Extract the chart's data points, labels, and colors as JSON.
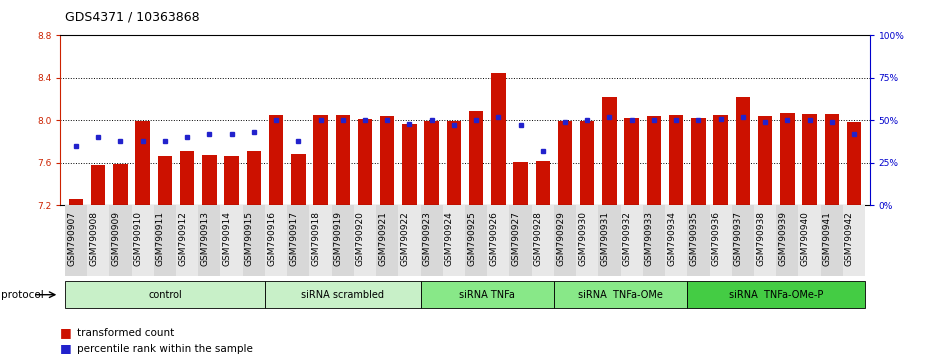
{
  "title": "GDS4371 / 10363868",
  "samples": [
    "GSM790907",
    "GSM790908",
    "GSM790909",
    "GSM790910",
    "GSM790911",
    "GSM790912",
    "GSM790913",
    "GSM790914",
    "GSM790915",
    "GSM790916",
    "GSM790917",
    "GSM790918",
    "GSM790919",
    "GSM790920",
    "GSM790921",
    "GSM790922",
    "GSM790923",
    "GSM790924",
    "GSM790925",
    "GSM790926",
    "GSM790927",
    "GSM790928",
    "GSM790929",
    "GSM790930",
    "GSM790931",
    "GSM790932",
    "GSM790933",
    "GSM790934",
    "GSM790935",
    "GSM790936",
    "GSM790937",
    "GSM790938",
    "GSM790939",
    "GSM790940",
    "GSM790941",
    "GSM790942"
  ],
  "bar_values": [
    7.26,
    7.58,
    7.59,
    7.99,
    7.66,
    7.71,
    7.67,
    7.66,
    7.71,
    8.05,
    7.68,
    8.05,
    8.05,
    8.01,
    8.04,
    7.97,
    7.99,
    7.99,
    8.09,
    8.45,
    7.61,
    7.62,
    7.99,
    7.99,
    8.22,
    8.02,
    8.04,
    8.05,
    8.02,
    8.05,
    8.22,
    8.04,
    8.07,
    8.06,
    8.06,
    7.98
  ],
  "percentile_values": [
    35,
    40,
    38,
    38,
    38,
    40,
    42,
    42,
    43,
    50,
    38,
    50,
    50,
    50,
    50,
    48,
    50,
    47,
    50,
    52,
    47,
    32,
    49,
    50,
    52,
    50,
    50,
    50,
    50,
    51,
    52,
    49,
    50,
    50,
    49,
    42
  ],
  "groups": [
    {
      "label": "control",
      "start": 0,
      "end": 9,
      "color": "#c8f0c8"
    },
    {
      "label": "siRNA scrambled",
      "start": 9,
      "end": 16,
      "color": "#c8f0c8"
    },
    {
      "label": "siRNA TNFa",
      "start": 16,
      "end": 22,
      "color": "#88e888"
    },
    {
      "label": "siRNA  TNFa-OMe",
      "start": 22,
      "end": 28,
      "color": "#88e888"
    },
    {
      "label": "siRNA  TNFa-OMe-P",
      "start": 28,
      "end": 36,
      "color": "#44cc44"
    }
  ],
  "ylim_left": [
    7.2,
    8.8
  ],
  "ylim_right": [
    0,
    100
  ],
  "yticks_left": [
    7.2,
    7.6,
    8.0,
    8.4,
    8.8
  ],
  "yticks_right": [
    0,
    25,
    50,
    75,
    100
  ],
  "ytick_labels_right": [
    "0%",
    "25%",
    "50%",
    "75%",
    "100%"
  ],
  "bar_color": "#cc1100",
  "percentile_color": "#2222cc",
  "bar_width": 0.65,
  "protocol_label": "protocol",
  "legend1": "transformed count",
  "legend2": "percentile rank within the sample",
  "title_fontsize": 9,
  "tick_fontsize": 6.5,
  "axis_label_color_left": "#cc2200",
  "axis_label_color_right": "#0000cc",
  "xticklabel_bg_even": "#d8d8d8",
  "xticklabel_bg_odd": "#e8e8e8"
}
